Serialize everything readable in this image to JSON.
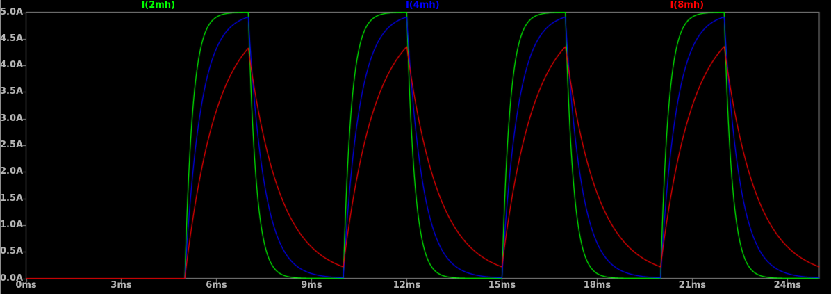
{
  "window": {
    "background_color": "#000000",
    "left_edge_color": "#8e8e8e"
  },
  "chart_data": {
    "type": "line",
    "title": "",
    "x_unit": "ms",
    "y_unit": "A",
    "x_range_ms": [
      0,
      25
    ],
    "y_range_A": [
      0,
      5
    ],
    "x_tick_values_ms": [
      0,
      3,
      6,
      9,
      12,
      15,
      18,
      21,
      24
    ],
    "x_tick_labels": [
      "0ms",
      "3ms",
      "6ms",
      "9ms",
      "12ms",
      "15ms",
      "18ms",
      "21ms",
      "24ms"
    ],
    "y_tick_values_A": [
      0,
      0.5,
      1,
      1.5,
      2,
      2.5,
      3,
      3.5,
      4,
      4.5,
      5
    ],
    "y_tick_labels": [
      "0.0A",
      "0.5A",
      "1.0A",
      "1.5A",
      "2.0A",
      "2.5A",
      "3.0A",
      "3.5A",
      "4.0A",
      "4.5A",
      "5.0A"
    ],
    "grid": "border-only",
    "legend_position": "top",
    "axis_color": "#8e8e8e",
    "tick_label_color": "#b4b4b4",
    "excitation": {
      "waveform": "pulse-train",
      "amplitude_A": 5,
      "first_rise_ms": 5,
      "on_time_ms": 2,
      "period_ms": 5,
      "end_ms": 25
    },
    "series": [
      {
        "name": "I(2mh)",
        "color": "#00ff00",
        "tau_ms": 0.25,
        "peak_A": 5.0,
        "valley_A": 0.0
      },
      {
        "name": "I(4mh)",
        "color": "#0000ff",
        "tau_ms": 0.5,
        "peak_A": 4.91,
        "valley_A": 0.01
      },
      {
        "name": "I(8mh)",
        "color": "#ff0000",
        "tau_ms": 1.0,
        "peak_A": 4.33,
        "valley_A": 0.22
      }
    ]
  }
}
